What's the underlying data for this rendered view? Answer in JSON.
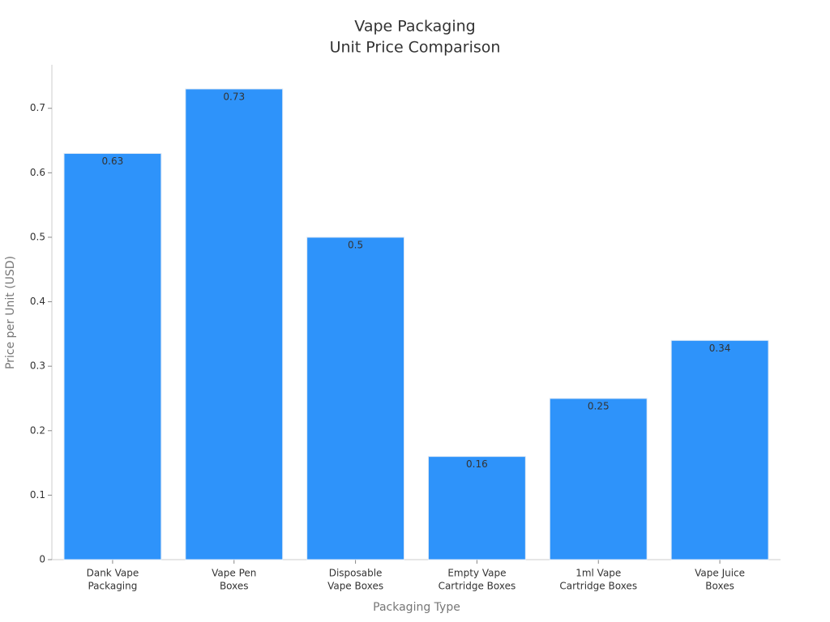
{
  "chart_data": {
    "type": "bar",
    "title": [
      "Vape Packaging",
      "Unit Price Comparison"
    ],
    "x_label": "Packaging Type",
    "y_label": "Price per Unit (USD)",
    "categories": [
      [
        "Dank Vape",
        "Packaging"
      ],
      [
        "Vape Pen",
        "Boxes"
      ],
      [
        "Disposable",
        "Vape Boxes"
      ],
      [
        "Empty Vape",
        "Cartridge Boxes"
      ],
      [
        "1ml Vape",
        "Cartridge Boxes"
      ],
      [
        "Vape Juice",
        "Boxes"
      ]
    ],
    "values": [
      0.63,
      0.73,
      0.5,
      0.16,
      0.25,
      0.34
    ],
    "color": "#2e93fa",
    "ylim": [
      0,
      0.7675
    ],
    "yticks": [
      0,
      0.1,
      0.2,
      0.3,
      0.4,
      0.5,
      0.6,
      0.7
    ],
    "grid": false
  }
}
